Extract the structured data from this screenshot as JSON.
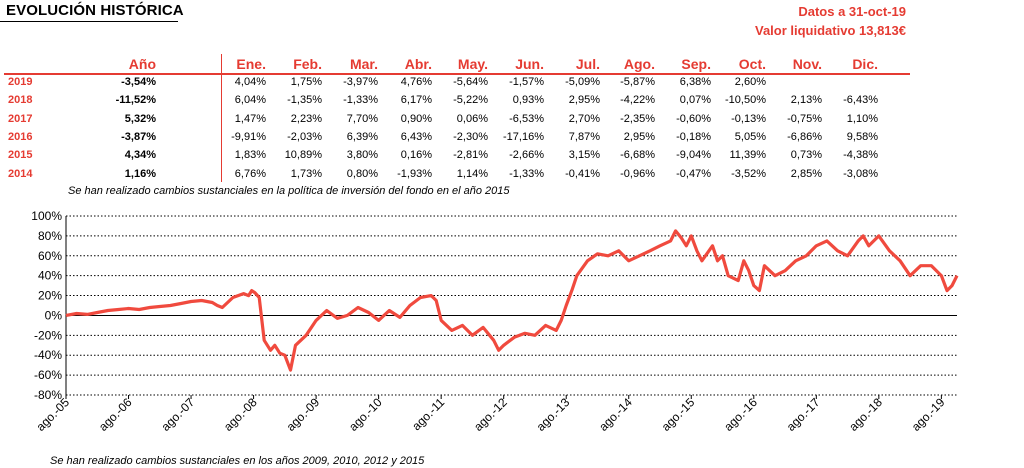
{
  "header": {
    "title": "EVOLUCIÓN HISTÓRICA",
    "date": "Datos a 31-oct-19",
    "value": "Valor liquidativo 13,813€"
  },
  "table": {
    "col_year": "Año",
    "months": [
      "Ene.",
      "Feb.",
      "Mar.",
      "Abr.",
      "May.",
      "Jun.",
      "Jul.",
      "Ago.",
      "Sep.",
      "Oct.",
      "Nov.",
      "Dic."
    ],
    "rows": [
      {
        "year": "2019",
        "total": "-3,54%",
        "values": [
          "4,04%",
          "1,75%",
          "-3,97%",
          "4,76%",
          "-5,64%",
          "-1,57%",
          "-5,09%",
          "-5,87%",
          "6,38%",
          "2,60%",
          "",
          ""
        ]
      },
      {
        "year": "2018",
        "total": "-11,52%",
        "values": [
          "6,04%",
          "-1,35%",
          "-1,33%",
          "6,17%",
          "-5,22%",
          "0,93%",
          "2,95%",
          "-4,22%",
          "0,07%",
          "-10,50%",
          "2,13%",
          "-6,43%"
        ]
      },
      {
        "year": "2017",
        "total": "5,32%",
        "values": [
          "1,47%",
          "2,23%",
          "7,70%",
          "0,90%",
          "0,06%",
          "-6,53%",
          "2,70%",
          "-2,35%",
          "-0,60%",
          "-0,13%",
          "-0,75%",
          "1,10%"
        ]
      },
      {
        "year": "2016",
        "total": "-3,87%",
        "values": [
          "-9,91%",
          "-2,03%",
          "6,39%",
          "6,43%",
          "-2,30%",
          "-17,16%",
          "7,87%",
          "2,95%",
          "-0,18%",
          "5,05%",
          "-6,86%",
          "9,58%"
        ]
      },
      {
        "year": "2015",
        "total": "4,34%",
        "values": [
          "1,83%",
          "10,89%",
          "3,80%",
          "0,16%",
          "-2,81%",
          "-2,66%",
          "3,15%",
          "-6,68%",
          "-9,04%",
          "11,39%",
          "0,73%",
          "-4,38%"
        ]
      },
      {
        "year": "2014",
        "total": "1,16%",
        "values": [
          "6,76%",
          "1,73%",
          "0,80%",
          "-1,93%",
          "1,14%",
          "-1,33%",
          "-0,41%",
          "-0,96%",
          "-0,47%",
          "-3,52%",
          "2,85%",
          "-3,08%"
        ]
      }
    ]
  },
  "notes": {
    "table_note": "Se han realizado cambios sustanciales en la política de inversión del fondo en el año 2015",
    "chart_note": "Se han realizado cambios sustanciales en los años 2009, 2010, 2012 y 2015"
  },
  "colors": {
    "accent": "#e53b32",
    "line": "#f04a3e",
    "grid": "#000000"
  },
  "chart_data": {
    "type": "line",
    "title": "",
    "xlabel": "",
    "ylabel": "",
    "ylim": [
      -80,
      100
    ],
    "yticks": [
      "100%",
      "80%",
      "60%",
      "40%",
      "20%",
      "0%",
      "-20%",
      "-40%",
      "-60%",
      "-80%"
    ],
    "ytick_values": [
      100,
      80,
      60,
      40,
      20,
      0,
      -20,
      -40,
      -60,
      -80
    ],
    "xticks": [
      "ago.-05",
      "ago.-06",
      "ago.-07",
      "ago.-08",
      "ago.-09",
      "ago.-10",
      "ago.-11",
      "ago.-12",
      "ago.-13",
      "ago.-14",
      "ago.-15",
      "ago.-16",
      "ago.-17",
      "ago.-18",
      "ago.-19"
    ],
    "grid": "horizontal dotted",
    "series": [
      {
        "x": [
          2005.58,
          2005.75,
          2005.92,
          2006.08,
          2006.25,
          2006.42,
          2006.58,
          2006.75,
          2006.92,
          2007.08,
          2007.25,
          2007.42,
          2007.58,
          2007.75,
          2007.92,
          2008.0,
          2008.08,
          2008.25,
          2008.42,
          2008.5,
          2008.55,
          2008.6,
          2008.67,
          2008.75,
          2008.85,
          2008.92,
          2009.0,
          2009.08,
          2009.17,
          2009.25,
          2009.42,
          2009.58,
          2009.75,
          2009.92,
          2010.08,
          2010.25,
          2010.42,
          2010.58,
          2010.75,
          2010.92,
          2011.08,
          2011.25,
          2011.42,
          2011.5,
          2011.58,
          2011.75,
          2011.92,
          2012.08,
          2012.25,
          2012.42,
          2012.5,
          2012.58,
          2012.75,
          2012.92,
          2013.08,
          2013.25,
          2013.42,
          2013.5,
          2013.58,
          2013.67,
          2013.75,
          2013.92,
          2014.08,
          2014.25,
          2014.42,
          2014.58,
          2014.75,
          2014.92,
          2015.08,
          2015.25,
          2015.33,
          2015.42,
          2015.5,
          2015.58,
          2015.67,
          2015.75,
          2015.92,
          2016.0,
          2016.08,
          2016.17,
          2016.33,
          2016.42,
          2016.5,
          2016.58,
          2016.67,
          2016.75,
          2016.92,
          2017.08,
          2017.25,
          2017.42,
          2017.58,
          2017.75,
          2017.92,
          2018.08,
          2018.25,
          2018.33,
          2018.42,
          2018.58,
          2018.75,
          2018.92,
          2019.08,
          2019.25,
          2019.42,
          2019.5,
          2019.58,
          2019.67,
          2019.75,
          2019.83
        ],
        "y": [
          0,
          2,
          1,
          3,
          5,
          6,
          7,
          6,
          8,
          9,
          10,
          12,
          14,
          15,
          13,
          10,
          8,
          18,
          22,
          20,
          25,
          23,
          18,
          -25,
          -35,
          -30,
          -38,
          -40,
          -55,
          -30,
          -20,
          -5,
          5,
          -3,
          0,
          8,
          3,
          -5,
          5,
          -2,
          10,
          18,
          20,
          15,
          -5,
          -15,
          -10,
          -20,
          -12,
          -25,
          -35,
          -30,
          -22,
          -18,
          -20,
          -10,
          -15,
          -5,
          10,
          25,
          40,
          55,
          62,
          60,
          65,
          55,
          60,
          65,
          70,
          75,
          85,
          78,
          70,
          80,
          65,
          55,
          70,
          55,
          60,
          40,
          35,
          55,
          45,
          30,
          25,
          50,
          40,
          45,
          55,
          60,
          70,
          75,
          65,
          60,
          75,
          80,
          70,
          80,
          65,
          55,
          40,
          50,
          50,
          45,
          40,
          25,
          30,
          40
        ]
      }
    ]
  }
}
